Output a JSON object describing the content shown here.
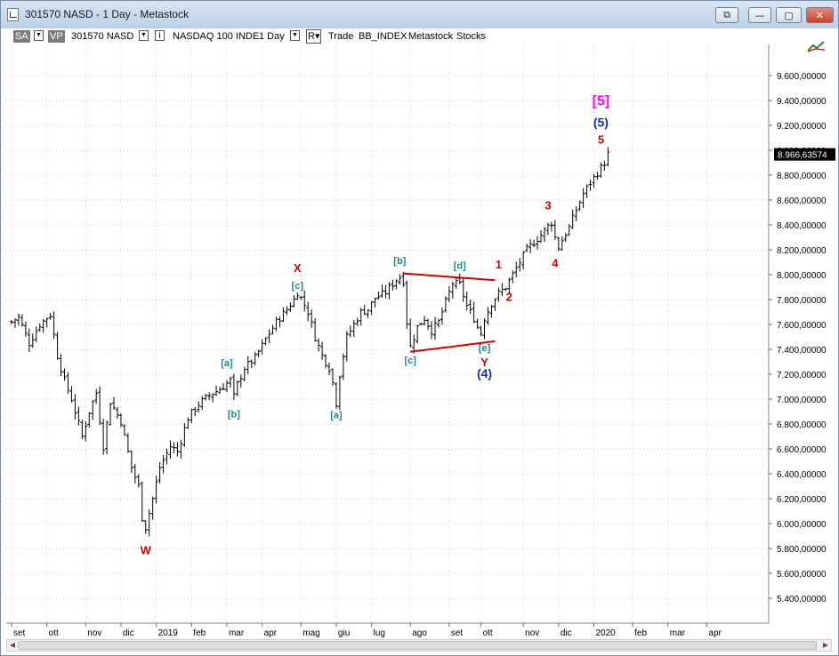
{
  "window": {
    "title": "301570 NASD - 1 Day - Metastock",
    "buttons": {
      "restore": "⧉",
      "minimize": "—",
      "maximize": "▢",
      "close": "✕"
    }
  },
  "toolbar": {
    "sa_label": "SA",
    "vp_label": "VP",
    "symbol": "301570 NASD",
    "instrument": "NASDAQ 100 INDE",
    "period": "1 Day",
    "r_label": "R",
    "trade": "Trade",
    "index": "BB_INDEX",
    "metastock": "Metastock",
    "stocks": "Stocks"
  },
  "chart_data": {
    "type": "ohlc",
    "ylim": [
      5200,
      9850
    ],
    "y_ticks": [
      {
        "v": 9600,
        "label": "9.600,00000"
      },
      {
        "v": 9400,
        "label": "9.400,00000"
      },
      {
        "v": 9200,
        "label": "9.200,00000"
      },
      {
        "v": 9000,
        "label": "9.000,00000"
      },
      {
        "v": 8800,
        "label": "8.800,00000"
      },
      {
        "v": 8600,
        "label": "8.600,00000"
      },
      {
        "v": 8400,
        "label": "8.400,00000"
      },
      {
        "v": 8200,
        "label": "8.200,00000"
      },
      {
        "v": 8000,
        "label": "8.000,00000"
      },
      {
        "v": 7800,
        "label": "7.800,00000"
      },
      {
        "v": 7600,
        "label": "7.600,00000"
      },
      {
        "v": 7400,
        "label": "7.400,00000"
      },
      {
        "v": 7200,
        "label": "7.200,00000"
      },
      {
        "v": 7000,
        "label": "7.000,00000"
      },
      {
        "v": 6800,
        "label": "6.800,00000"
      },
      {
        "v": 6600,
        "label": "6.600,00000"
      },
      {
        "v": 6400,
        "label": "6.400,00000"
      },
      {
        "v": 6200,
        "label": "6.200,00000"
      },
      {
        "v": 6000,
        "label": "6.000,00000"
      },
      {
        "v": 5800,
        "label": "5.800,00000"
      },
      {
        "v": 5600,
        "label": "5.600,00000"
      },
      {
        "v": 5400,
        "label": "5.400,00000"
      }
    ],
    "last_price": {
      "v": 8966.63574,
      "label": "8.966,63574"
    },
    "x_ticks": [
      {
        "i": 0,
        "label": "set"
      },
      {
        "i": 10,
        "label": "ott"
      },
      {
        "i": 21,
        "label": "nov"
      },
      {
        "i": 31,
        "label": "dic"
      },
      {
        "i": 41,
        "label": "2019"
      },
      {
        "i": 51,
        "label": "feb"
      },
      {
        "i": 61,
        "label": "mar"
      },
      {
        "i": 71,
        "label": "apr"
      },
      {
        "i": 82,
        "label": "mag"
      },
      {
        "i": 92,
        "label": "giu"
      },
      {
        "i": 102,
        "label": "lug"
      },
      {
        "i": 113,
        "label": "ago"
      },
      {
        "i": 124,
        "label": "set"
      },
      {
        "i": 133,
        "label": "ott"
      },
      {
        "i": 145,
        "label": "nov"
      },
      {
        "i": 155,
        "label": "dic"
      },
      {
        "i": 165,
        "label": "2020"
      },
      {
        "i": 176,
        "label": "feb"
      },
      {
        "i": 186,
        "label": "mar"
      },
      {
        "i": 197,
        "label": "apr"
      }
    ],
    "x_count": 211,
    "price_anchors": [
      [
        0,
        7620
      ],
      [
        2,
        7660
      ],
      [
        5,
        7450
      ],
      [
        8,
        7600
      ],
      [
        11,
        7680
      ],
      [
        13,
        7350
      ],
      [
        15,
        7150
      ],
      [
        17,
        7000
      ],
      [
        20,
        6700
      ],
      [
        22,
        6900
      ],
      [
        24,
        7050
      ],
      [
        26,
        6620
      ],
      [
        28,
        6980
      ],
      [
        31,
        6820
      ],
      [
        34,
        6450
      ],
      [
        36,
        6300
      ],
      [
        37,
        6050
      ],
      [
        38,
        5970
      ],
      [
        40,
        6200
      ],
      [
        42,
        6450
      ],
      [
        45,
        6620
      ],
      [
        47,
        6580
      ],
      [
        50,
        6850
      ],
      [
        53,
        6960
      ],
      [
        56,
        7030
      ],
      [
        59,
        7080
      ],
      [
        62,
        7150
      ],
      [
        63,
        7020
      ],
      [
        64,
        7120
      ],
      [
        66,
        7250
      ],
      [
        69,
        7330
      ],
      [
        72,
        7480
      ],
      [
        75,
        7620
      ],
      [
        78,
        7720
      ],
      [
        80,
        7800
      ],
      [
        81,
        7860
      ],
      [
        82,
        7810
      ],
      [
        84,
        7700
      ],
      [
        86,
        7500
      ],
      [
        88,
        7350
      ],
      [
        90,
        7250
      ],
      [
        91,
        7130
      ],
      [
        92,
        6970
      ],
      [
        93,
        7200
      ],
      [
        95,
        7500
      ],
      [
        97,
        7600
      ],
      [
        99,
        7700
      ],
      [
        101,
        7720
      ],
      [
        103,
        7810
      ],
      [
        106,
        7860
      ],
      [
        109,
        7960
      ],
      [
        110,
        7980
      ],
      [
        111,
        7950
      ],
      [
        112,
        7620
      ],
      [
        113,
        7420
      ],
      [
        115,
        7580
      ],
      [
        117,
        7650
      ],
      [
        119,
        7550
      ],
      [
        121,
        7620
      ],
      [
        123,
        7780
      ],
      [
        125,
        7930
      ],
      [
        127,
        7920
      ],
      [
        129,
        7750
      ],
      [
        131,
        7650
      ],
      [
        132,
        7580
      ],
      [
        133,
        7530
      ],
      [
        134,
        7650
      ],
      [
        136,
        7770
      ],
      [
        138,
        7850
      ],
      [
        140,
        7900
      ],
      [
        142,
        8000
      ],
      [
        144,
        8100
      ],
      [
        146,
        8200
      ],
      [
        148,
        8260
      ],
      [
        150,
        8320
      ],
      [
        152,
        8390
      ],
      [
        153,
        8420
      ],
      [
        154,
        8300
      ],
      [
        155,
        8220
      ],
      [
        156,
        8280
      ],
      [
        158,
        8380
      ],
      [
        160,
        8520
      ],
      [
        162,
        8650
      ],
      [
        164,
        8740
      ],
      [
        166,
        8820
      ],
      [
        168,
        8900
      ],
      [
        169,
        8970
      ]
    ],
    "trendlines": [
      {
        "from": [
          111,
          8010
        ],
        "to": [
          137,
          7955
        ],
        "color": "#d00000"
      },
      {
        "from": [
          113,
          7380
        ],
        "to": [
          137,
          7465
        ],
        "color": "#d00000"
      }
    ],
    "annotations": [
      {
        "text": "W",
        "i": 38,
        "v": 5755,
        "color": "#d00000",
        "size": 13
      },
      {
        "text": "X",
        "i": 81,
        "v": 8020,
        "color": "#d00000",
        "size": 13
      },
      {
        "text": "[c]",
        "i": 81,
        "v": 7885,
        "color": "#1a8a8a",
        "size": 11
      },
      {
        "text": "[a]",
        "i": 61,
        "v": 7265,
        "color": "#1a8a8a",
        "size": 11
      },
      {
        "text": "[b]",
        "i": 63,
        "v": 6855,
        "color": "#1a8a8a",
        "size": 11
      },
      {
        "text": "[a]",
        "i": 92,
        "v": 6845,
        "color": "#1a8a8a",
        "size": 11
      },
      {
        "text": "[b]",
        "i": 110,
        "v": 8085,
        "color": "#1a8a8a",
        "size": 11
      },
      {
        "text": "[c]",
        "i": 113,
        "v": 7285,
        "color": "#1a8a8a",
        "size": 11
      },
      {
        "text": "[d]",
        "i": 127,
        "v": 8045,
        "color": "#1a8a8a",
        "size": 11
      },
      {
        "text": "[e]",
        "i": 134,
        "v": 7385,
        "color": "#1a8a8a",
        "size": 11
      },
      {
        "text": "Y",
        "i": 134,
        "v": 7265,
        "color": "#d00000",
        "size": 13
      },
      {
        "text": "(4)",
        "i": 134,
        "v": 7170,
        "color": "#1a2fb0",
        "size": 14
      },
      {
        "text": "1",
        "i": 138,
        "v": 8050,
        "color": "#d00000",
        "size": 13
      },
      {
        "text": "2",
        "i": 141,
        "v": 7790,
        "color": "#d00000",
        "size": 13
      },
      {
        "text": "3",
        "i": 152,
        "v": 8525,
        "color": "#d00000",
        "size": 13
      },
      {
        "text": "4",
        "i": 154,
        "v": 8060,
        "color": "#d00000",
        "size": 13
      },
      {
        "text": "5",
        "i": 167,
        "v": 9055,
        "color": "#d00000",
        "size": 13
      },
      {
        "text": "(5)",
        "i": 167,
        "v": 9190,
        "color": "#1a2fb0",
        "size": 14
      },
      {
        "text": "[5]",
        "i": 167,
        "v": 9360,
        "color": "#ff00ff",
        "size": 16
      }
    ]
  }
}
